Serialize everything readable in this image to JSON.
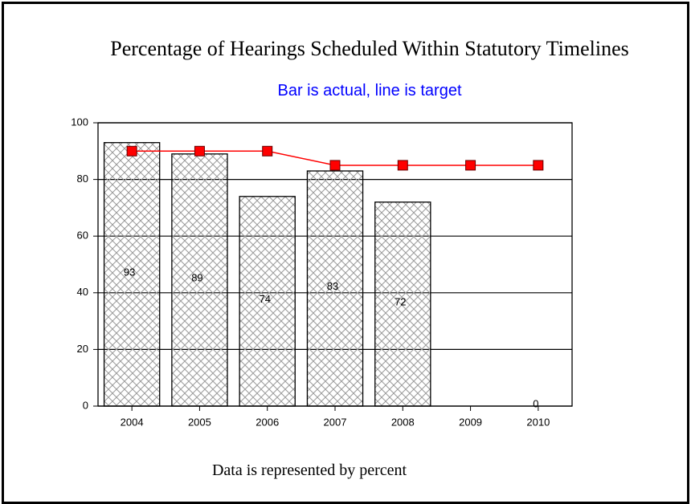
{
  "chart_data": {
    "type": "bar_line",
    "title": "Percentage of Hearings Scheduled Within Statutory Timelines",
    "subtitle": "Bar is actual, line is target",
    "footnote": "Data is represented by percent",
    "categories": [
      "2004",
      "2005",
      "2006",
      "2007",
      "2008",
      "2009",
      "2010"
    ],
    "series": [
      {
        "type": "bar",
        "color": "#999999",
        "values": [
          93,
          89,
          74,
          83,
          72,
          null,
          0
        ]
      },
      {
        "type": "line",
        "color": "#ff0000",
        "values": [
          90,
          90,
          90,
          85,
          85,
          85,
          85
        ]
      }
    ],
    "ylim": [
      0,
      100
    ],
    "yticks": [
      0,
      20,
      40,
      60,
      80,
      100
    ],
    "grid": true
  }
}
